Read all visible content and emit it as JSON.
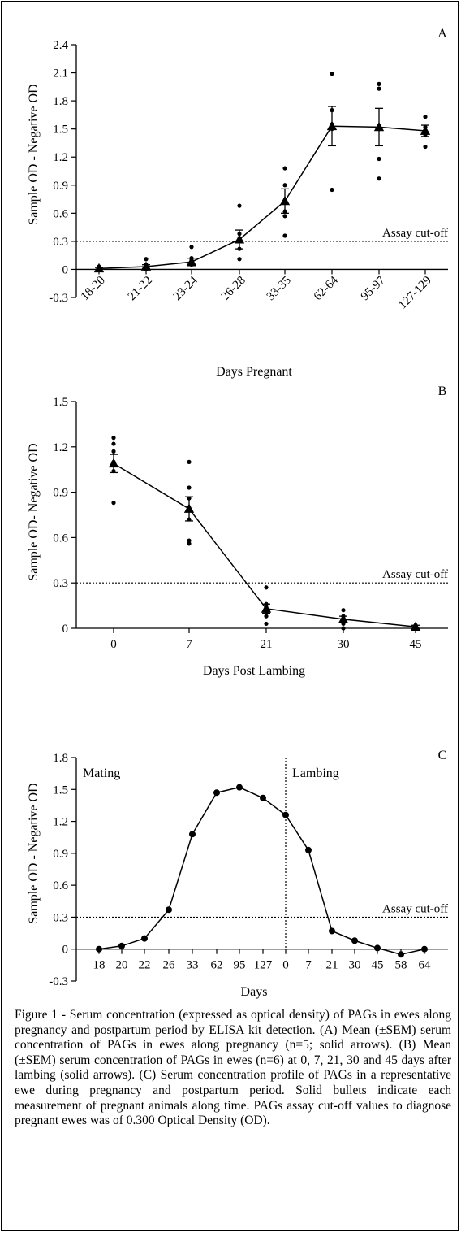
{
  "chart_data": [
    {
      "type": "scatter",
      "panel_letter": "A",
      "xlabel": "Days Pregnant",
      "ylabel": "Sample OD - Negative OD",
      "ylim": [
        -0.3,
        2.4
      ],
      "yticks": [
        "-0.3",
        "0",
        "0.3",
        "0.6",
        "0.9",
        "1.2",
        "1.5",
        "1.8",
        "2.1",
        "2.4"
      ],
      "categories": [
        "18-20",
        "21-22",
        "23-24",
        "26-28",
        "33-35",
        "62-64",
        "95-97",
        "127-129"
      ],
      "mean": [
        0.01,
        0.03,
        0.08,
        0.32,
        0.73,
        1.53,
        1.52,
        1.48
      ],
      "sem": [
        0.01,
        0.02,
        0.04,
        0.1,
        0.13,
        0.21,
        0.2,
        0.06
      ],
      "points": [
        [
          0.0,
          0.01,
          0.02,
          0.0,
          0.03
        ],
        [
          0.0,
          0.02,
          0.05,
          0.03,
          0.11
        ],
        [
          0.05,
          0.08,
          0.1,
          0.12,
          0.24
        ],
        [
          0.11,
          0.22,
          0.3,
          0.38,
          0.68
        ],
        [
          0.36,
          0.57,
          0.62,
          0.9,
          1.08
        ],
        [
          0.85,
          1.5,
          1.55,
          1.7,
          2.09
        ],
        [
          0.97,
          1.18,
          1.5,
          1.93,
          1.98
        ],
        [
          1.31,
          1.44,
          1.48,
          1.52,
          1.63
        ]
      ],
      "cutoff": {
        "value": 0.3,
        "label": "Assay cut-off"
      }
    },
    {
      "type": "scatter",
      "panel_letter": "B",
      "xlabel": "Days Post Lambing",
      "ylabel": "Sample OD- Negative OD",
      "ylim": [
        0,
        1.5
      ],
      "yticks": [
        "0",
        "0.3",
        "0.6",
        "0.9",
        "1.2",
        "1.5"
      ],
      "categories": [
        "0",
        "7",
        "21",
        "30",
        "45"
      ],
      "mean": [
        1.09,
        0.79,
        0.13,
        0.06,
        0.01
      ],
      "sem": [
        0.06,
        0.08,
        0.03,
        0.02,
        0.01
      ],
      "points": [
        [
          0.83,
          1.04,
          1.1,
          1.17,
          1.22,
          1.26
        ],
        [
          0.56,
          0.58,
          0.72,
          0.86,
          0.93,
          1.1
        ],
        [
          0.03,
          0.08,
          0.11,
          0.14,
          0.16,
          0.27
        ],
        [
          0.0,
          0.03,
          0.05,
          0.06,
          0.08,
          0.12
        ],
        [
          0.0,
          0.0,
          0.01,
          0.01,
          0.02,
          0.02
        ]
      ],
      "cutoff": {
        "value": 0.3,
        "label": "Assay cut-off"
      }
    },
    {
      "type": "line",
      "panel_letter": "C",
      "xlabel": "Days",
      "ylabel": "Sample OD - Negative OD",
      "ylim": [
        -0.3,
        1.8
      ],
      "yticks": [
        "-0.3",
        "0",
        "0.3",
        "0.6",
        "0.9",
        "1.2",
        "1.5",
        "1.8"
      ],
      "categories": [
        "18",
        "20",
        "22",
        "26",
        "33",
        "62",
        "95",
        "127",
        "0",
        "7",
        "21",
        "30",
        "45",
        "58",
        "64"
      ],
      "values": [
        0.0,
        0.03,
        0.1,
        0.37,
        1.08,
        1.47,
        1.52,
        1.42,
        1.26,
        0.93,
        0.17,
        0.08,
        0.01,
        -0.05,
        0.0
      ],
      "cutoff": {
        "value": 0.3,
        "label": "Assay cut-off"
      },
      "annotations": {
        "left": "Mating",
        "right": "Lambing"
      }
    }
  ],
  "caption": {
    "lead": "Figure 1 - ",
    "text": "Serum concentration (expressed as optical density) of PAGs in ewes along pregnancy and postpartum period by ELISA kit detection. (A) Mean (±SEM) serum concentration of PAGs in ewes along pregnancy (n=5; solid arrows). (B) Mean (±SEM) serum concentration of PAGs in ewes (n=6) at 0, 7, 21, 30 and 45 days after lambing (solid arrows). (C) Serum concentration profile of PAGs in a representative ewe during pregnancy and postpartum period. Solid bullets indicate each measurement of pregnant animals along time.  PAGs assay cut-off values to diagnose pregnant ewes was of 0.300 Optical Density (OD)."
  }
}
